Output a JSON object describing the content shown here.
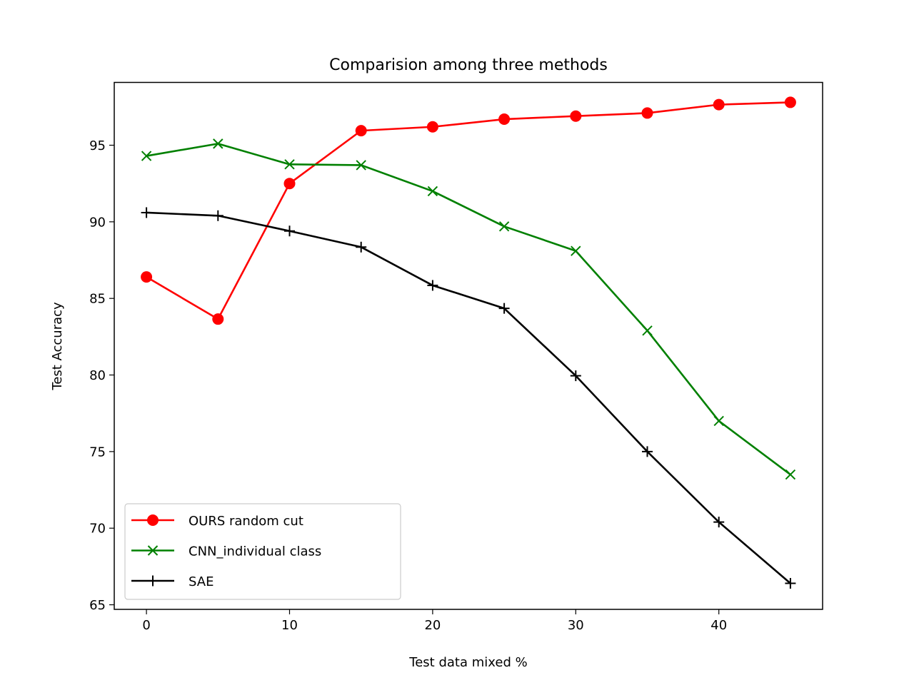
{
  "chart_data": {
    "type": "line",
    "title": "Comparision among three methods",
    "xlabel": "Test data mixed %",
    "ylabel": "Test Accuracy",
    "x": [
      0,
      5,
      10,
      15,
      20,
      25,
      30,
      35,
      40,
      45
    ],
    "xlim": [
      -2.25,
      47.25
    ],
    "ylim": [
      64.7,
      99.1
    ],
    "xticks": [
      0,
      10,
      20,
      30,
      40
    ],
    "yticks": [
      65,
      70,
      75,
      80,
      85,
      90,
      95
    ],
    "grid": false,
    "legend_position": "lower-left",
    "series": [
      {
        "name": "OURS random cut",
        "color": "#ff0000",
        "marker": "circle",
        "values": [
          86.4,
          83.65,
          92.5,
          95.95,
          96.2,
          96.7,
          96.9,
          97.1,
          97.65,
          97.8
        ]
      },
      {
        "name": "CNN_individual class",
        "color": "#008000",
        "marker": "x",
        "values": [
          94.3,
          95.1,
          93.75,
          93.7,
          92.0,
          89.7,
          88.1,
          82.9,
          77.0,
          73.5
        ]
      },
      {
        "name": "SAE",
        "color": "#000000",
        "marker": "plus",
        "values": [
          90.6,
          90.4,
          89.4,
          88.35,
          85.85,
          84.35,
          79.95,
          75.0,
          70.4,
          66.4
        ]
      }
    ]
  }
}
